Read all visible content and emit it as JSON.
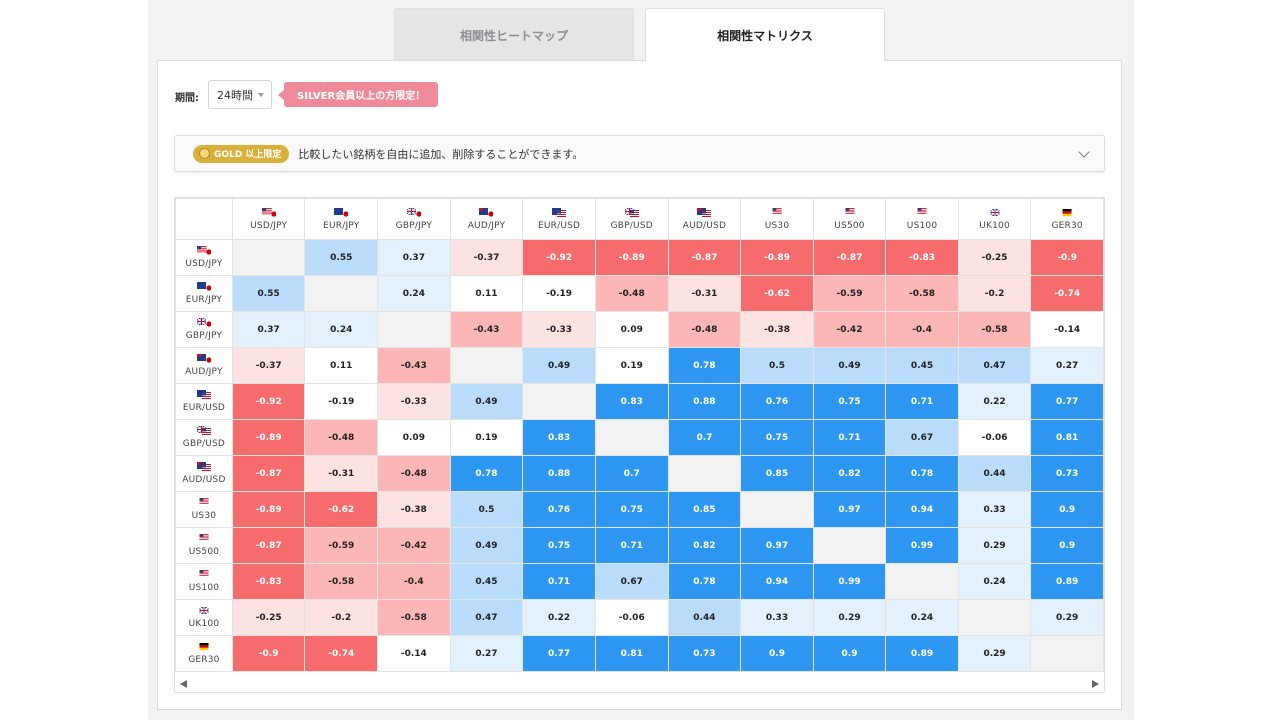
{
  "tabs": [
    {
      "label": "相関性ヒートマップ",
      "active": false
    },
    {
      "label": "相関性マトリクス",
      "active": true
    }
  ],
  "period": {
    "label": "期間:",
    "value": "24時間"
  },
  "silver_badge": "SILVER会員以上の方限定！",
  "gold_bar": {
    "badge": "GOLD 以上限定",
    "text": "比較したい銘柄を自由に追加、削除することができます。"
  },
  "colors": {
    "strong_pos": "#2e97f2",
    "mid_pos": "#b8dcf9",
    "light_pos": "#e3f1fc",
    "neutral": "#ffffff",
    "light_neg": "#fde2e2",
    "mid_neg": "#fcb6b6",
    "strong_neg": "#f66b6b",
    "diagonal": "#f2f2f2",
    "gold": "#d8b03a",
    "silver_badge": "#ef8a99"
  },
  "symbols": [
    {
      "name": "USD/JPY",
      "flag": "us-jp-flag-icon"
    },
    {
      "name": "EUR/JPY",
      "flag": "eu-jp-flag-icon"
    },
    {
      "name": "GBP/JPY",
      "flag": "gb-jp-flag-icon"
    },
    {
      "name": "AUD/JPY",
      "flag": "au-jp-flag-icon"
    },
    {
      "name": "EUR/USD",
      "flag": "eu-us-flag-icon"
    },
    {
      "name": "GBP/USD",
      "flag": "gb-us-flag-icon"
    },
    {
      "name": "AUD/USD",
      "flag": "au-us-flag-icon"
    },
    {
      "name": "US30",
      "flag": "us-flag-icon"
    },
    {
      "name": "US500",
      "flag": "us-flag-icon"
    },
    {
      "name": "US100",
      "flag": "us-flag-icon"
    },
    {
      "name": "UK100",
      "flag": "gb-flag-icon"
    },
    {
      "name": "GER30",
      "flag": "de-flag-icon"
    }
  ],
  "matrix": [
    [
      "",
      "0.55",
      "0.37",
      "-0.37",
      "-0.92",
      "-0.89",
      "-0.87",
      "-0.89",
      "-0.87",
      "-0.83",
      "-0.25",
      "-0.9"
    ],
    [
      "0.55",
      "",
      "0.24",
      "0.11",
      "-0.19",
      "-0.48",
      "-0.31",
      "-0.62",
      "-0.59",
      "-0.58",
      "-0.2",
      "-0.74"
    ],
    [
      "0.37",
      "0.24",
      "",
      "-0.43",
      "-0.33",
      "0.09",
      "-0.48",
      "-0.38",
      "-0.42",
      "-0.4",
      "-0.58",
      "-0.14"
    ],
    [
      "-0.37",
      "0.11",
      "-0.43",
      "",
      "0.49",
      "0.19",
      "0.78",
      "0.5",
      "0.49",
      "0.45",
      "0.47",
      "0.27"
    ],
    [
      "-0.92",
      "-0.19",
      "-0.33",
      "0.49",
      "",
      "0.83",
      "0.88",
      "0.76",
      "0.75",
      "0.71",
      "0.22",
      "0.77"
    ],
    [
      "-0.89",
      "-0.48",
      "0.09",
      "0.19",
      "0.83",
      "",
      "0.7",
      "0.75",
      "0.71",
      "0.67",
      "-0.06",
      "0.81"
    ],
    [
      "-0.87",
      "-0.31",
      "-0.48",
      "0.78",
      "0.88",
      "0.7",
      "",
      "0.85",
      "0.82",
      "0.78",
      "0.44",
      "0.73"
    ],
    [
      "-0.89",
      "-0.62",
      "-0.38",
      "0.5",
      "0.76",
      "0.75",
      "0.85",
      "",
      "0.97",
      "0.94",
      "0.33",
      "0.9"
    ],
    [
      "-0.87",
      "-0.59",
      "-0.42",
      "0.49",
      "0.75",
      "0.71",
      "0.82",
      "0.97",
      "",
      "0.99",
      "0.29",
      "0.9"
    ],
    [
      "-0.83",
      "-0.58",
      "-0.4",
      "0.45",
      "0.71",
      "0.67",
      "0.78",
      "0.94",
      "0.99",
      "",
      "0.24",
      "0.89"
    ],
    [
      "-0.25",
      "-0.2",
      "-0.58",
      "0.47",
      "0.22",
      "-0.06",
      "0.44",
      "0.33",
      "0.29",
      "0.24",
      "",
      "0.29"
    ],
    [
      "-0.9",
      "-0.74",
      "-0.14",
      "0.27",
      "0.77",
      "0.81",
      "0.73",
      "0.9",
      "0.9",
      "0.89",
      "0.29",
      ""
    ]
  ]
}
